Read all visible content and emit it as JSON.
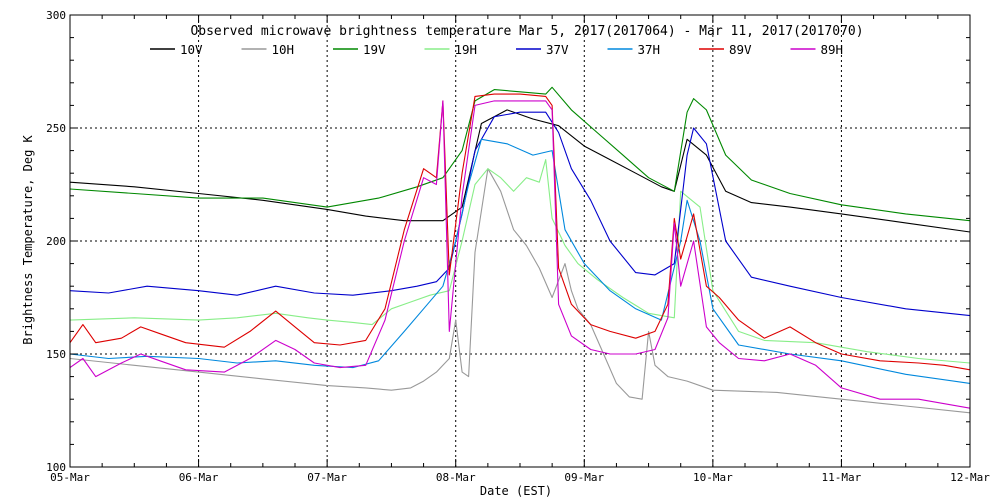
{
  "chart_data": {
    "type": "line",
    "title": "Observed microwave brightness temperature Mar  5, 2017(2017064) - Mar 11, 2017(2017070)",
    "xlabel": "Date (EST)",
    "ylabel": "Brightness Temperature, Deg K",
    "xlim": [
      0,
      7
    ],
    "ylim": [
      100,
      300
    ],
    "x_unit": "days since 05-Mar 00:00",
    "grid": true,
    "legend_position": "top",
    "x_ticks": [
      {
        "value": 0,
        "label": "05-Mar"
      },
      {
        "value": 1,
        "label": "06-Mar"
      },
      {
        "value": 2,
        "label": "07-Mar"
      },
      {
        "value": 3,
        "label": "08-Mar"
      },
      {
        "value": 4,
        "label": "09-Mar"
      },
      {
        "value": 5,
        "label": "10-Mar"
      },
      {
        "value": 6,
        "label": "11-Mar"
      },
      {
        "value": 7,
        "label": "12-Mar"
      }
    ],
    "y_ticks": [
      {
        "value": 100,
        "label": "100"
      },
      {
        "value": 150,
        "label": "150"
      },
      {
        "value": 200,
        "label": "200"
      },
      {
        "value": 250,
        "label": "250"
      },
      {
        "value": 300,
        "label": "300"
      }
    ],
    "series": [
      {
        "name": "10V",
        "color": "#000000",
        "points": [
          [
            0,
            226
          ],
          [
            0.5,
            224
          ],
          [
            1,
            221
          ],
          [
            1.5,
            218
          ],
          [
            2,
            214
          ],
          [
            2.3,
            211
          ],
          [
            2.6,
            209
          ],
          [
            2.9,
            209
          ],
          [
            3.05,
            215
          ],
          [
            3.2,
            252
          ],
          [
            3.4,
            258
          ],
          [
            3.6,
            254
          ],
          [
            3.8,
            251
          ],
          [
            4.0,
            242
          ],
          [
            4.2,
            236
          ],
          [
            4.4,
            230
          ],
          [
            4.6,
            224
          ],
          [
            4.7,
            222
          ],
          [
            4.8,
            245
          ],
          [
            4.95,
            238
          ],
          [
            5.1,
            222
          ],
          [
            5.3,
            217
          ],
          [
            5.6,
            215
          ],
          [
            6.0,
            212
          ],
          [
            6.5,
            208
          ],
          [
            7,
            204
          ]
        ]
      },
      {
        "name": "10H",
        "color": "#999999",
        "points": [
          [
            0,
            148
          ],
          [
            0.5,
            145
          ],
          [
            1,
            142
          ],
          [
            1.5,
            139
          ],
          [
            2,
            136
          ],
          [
            2.3,
            135
          ],
          [
            2.5,
            134
          ],
          [
            2.65,
            135
          ],
          [
            2.75,
            138
          ],
          [
            2.85,
            142
          ],
          [
            2.95,
            148
          ],
          [
            3.0,
            165
          ],
          [
            3.05,
            142
          ],
          [
            3.1,
            140
          ],
          [
            3.15,
            195
          ],
          [
            3.25,
            232
          ],
          [
            3.35,
            222
          ],
          [
            3.45,
            205
          ],
          [
            3.55,
            198
          ],
          [
            3.65,
            188
          ],
          [
            3.75,
            175
          ],
          [
            3.85,
            190
          ],
          [
            3.9,
            178
          ],
          [
            3.95,
            170
          ],
          [
            4.05,
            163
          ],
          [
            4.15,
            150
          ],
          [
            4.25,
            137
          ],
          [
            4.35,
            131
          ],
          [
            4.45,
            130
          ],
          [
            4.5,
            160
          ],
          [
            4.55,
            145
          ],
          [
            4.65,
            140
          ],
          [
            4.8,
            138
          ],
          [
            5.0,
            134
          ],
          [
            5.5,
            133
          ],
          [
            6.0,
            130
          ],
          [
            6.5,
            127
          ],
          [
            7,
            124
          ]
        ]
      },
      {
        "name": "19V",
        "color": "#008800",
        "points": [
          [
            0,
            223
          ],
          [
            0.5,
            221
          ],
          [
            1,
            219
          ],
          [
            1.5,
            219
          ],
          [
            2,
            215
          ],
          [
            2.4,
            219
          ],
          [
            2.7,
            224
          ],
          [
            2.9,
            228
          ],
          [
            3.05,
            240
          ],
          [
            3.15,
            262
          ],
          [
            3.3,
            267
          ],
          [
            3.5,
            266
          ],
          [
            3.7,
            265
          ],
          [
            3.75,
            268
          ],
          [
            3.9,
            258
          ],
          [
            4.1,
            248
          ],
          [
            4.3,
            238
          ],
          [
            4.5,
            228
          ],
          [
            4.7,
            222
          ],
          [
            4.8,
            257
          ],
          [
            4.85,
            263
          ],
          [
            4.95,
            258
          ],
          [
            5.1,
            238
          ],
          [
            5.3,
            227
          ],
          [
            5.6,
            221
          ],
          [
            6.0,
            216
          ],
          [
            6.5,
            212
          ],
          [
            7,
            209
          ]
        ]
      },
      {
        "name": "19H",
        "color": "#88ee88",
        "points": [
          [
            0,
            165
          ],
          [
            0.5,
            166
          ],
          [
            1,
            165
          ],
          [
            1.3,
            166
          ],
          [
            1.6,
            168
          ],
          [
            1.85,
            166
          ],
          [
            2.0,
            165
          ],
          [
            2.2,
            164
          ],
          [
            2.35,
            163
          ],
          [
            2.5,
            170
          ],
          [
            2.65,
            173
          ],
          [
            2.8,
            176
          ],
          [
            2.95,
            178
          ],
          [
            3.05,
            200
          ],
          [
            3.15,
            225
          ],
          [
            3.25,
            232
          ],
          [
            3.35,
            228
          ],
          [
            3.45,
            222
          ],
          [
            3.55,
            228
          ],
          [
            3.65,
            226
          ],
          [
            3.7,
            236
          ],
          [
            3.75,
            210
          ],
          [
            3.85,
            198
          ],
          [
            3.95,
            190
          ],
          [
            4.1,
            183
          ],
          [
            4.3,
            175
          ],
          [
            4.5,
            168
          ],
          [
            4.7,
            166
          ],
          [
            4.75,
            222
          ],
          [
            4.9,
            215
          ],
          [
            5.0,
            178
          ],
          [
            5.2,
            160
          ],
          [
            5.4,
            156
          ],
          [
            5.8,
            155
          ],
          [
            6.2,
            151
          ],
          [
            6.6,
            148
          ],
          [
            7,
            146
          ]
        ]
      },
      {
        "name": "37V",
        "color": "#0000cc",
        "points": [
          [
            0,
            178
          ],
          [
            0.3,
            177
          ],
          [
            0.6,
            180
          ],
          [
            1,
            178
          ],
          [
            1.3,
            176
          ],
          [
            1.6,
            180
          ],
          [
            1.9,
            177
          ],
          [
            2.2,
            176
          ],
          [
            2.5,
            178
          ],
          [
            2.7,
            180
          ],
          [
            2.85,
            182
          ],
          [
            2.95,
            188
          ],
          [
            3.05,
            212
          ],
          [
            3.15,
            240
          ],
          [
            3.3,
            255
          ],
          [
            3.5,
            257
          ],
          [
            3.7,
            257
          ],
          [
            3.8,
            248
          ],
          [
            3.9,
            232
          ],
          [
            4.05,
            218
          ],
          [
            4.2,
            200
          ],
          [
            4.4,
            186
          ],
          [
            4.55,
            185
          ],
          [
            4.7,
            190
          ],
          [
            4.8,
            238
          ],
          [
            4.85,
            250
          ],
          [
            4.95,
            243
          ],
          [
            5.1,
            200
          ],
          [
            5.3,
            184
          ],
          [
            5.6,
            180
          ],
          [
            6.0,
            175
          ],
          [
            6.5,
            170
          ],
          [
            7,
            167
          ]
        ]
      },
      {
        "name": "37H",
        "color": "#0088dd",
        "points": [
          [
            0,
            150
          ],
          [
            0.3,
            148
          ],
          [
            0.6,
            149
          ],
          [
            1,
            148
          ],
          [
            1.3,
            146
          ],
          [
            1.6,
            147
          ],
          [
            1.9,
            145
          ],
          [
            2.2,
            144
          ],
          [
            2.4,
            147
          ],
          [
            2.6,
            160
          ],
          [
            2.75,
            170
          ],
          [
            2.9,
            180
          ],
          [
            3.0,
            200
          ],
          [
            3.1,
            225
          ],
          [
            3.2,
            245
          ],
          [
            3.4,
            243
          ],
          [
            3.6,
            238
          ],
          [
            3.75,
            240
          ],
          [
            3.85,
            205
          ],
          [
            4.0,
            190
          ],
          [
            4.2,
            178
          ],
          [
            4.4,
            170
          ],
          [
            4.6,
            165
          ],
          [
            4.75,
            200
          ],
          [
            4.8,
            218
          ],
          [
            4.9,
            200
          ],
          [
            5.0,
            170
          ],
          [
            5.2,
            154
          ],
          [
            5.6,
            150
          ],
          [
            6.0,
            147
          ],
          [
            6.5,
            141
          ],
          [
            7,
            137
          ]
        ]
      },
      {
        "name": "89V",
        "color": "#dd0000",
        "points": [
          [
            0,
            155
          ],
          [
            0.1,
            163
          ],
          [
            0.2,
            155
          ],
          [
            0.4,
            157
          ],
          [
            0.55,
            162
          ],
          [
            0.7,
            159
          ],
          [
            0.9,
            155
          ],
          [
            1.2,
            153
          ],
          [
            1.4,
            160
          ],
          [
            1.6,
            169
          ],
          [
            1.75,
            162
          ],
          [
            1.9,
            155
          ],
          [
            2.1,
            154
          ],
          [
            2.3,
            156
          ],
          [
            2.45,
            170
          ],
          [
            2.6,
            205
          ],
          [
            2.75,
            232
          ],
          [
            2.85,
            228
          ],
          [
            2.9,
            262
          ],
          [
            2.95,
            185
          ],
          [
            3.05,
            230
          ],
          [
            3.15,
            264
          ],
          [
            3.3,
            265
          ],
          [
            3.5,
            265
          ],
          [
            3.7,
            264
          ],
          [
            3.75,
            260
          ],
          [
            3.8,
            188
          ],
          [
            3.9,
            172
          ],
          [
            4.05,
            163
          ],
          [
            4.2,
            160
          ],
          [
            4.4,
            157
          ],
          [
            4.55,
            160
          ],
          [
            4.65,
            172
          ],
          [
            4.7,
            210
          ],
          [
            4.75,
            192
          ],
          [
            4.85,
            212
          ],
          [
            4.95,
            180
          ],
          [
            5.05,
            175
          ],
          [
            5.2,
            165
          ],
          [
            5.4,
            157
          ],
          [
            5.6,
            162
          ],
          [
            5.8,
            155
          ],
          [
            6.0,
            150
          ],
          [
            6.3,
            147
          ],
          [
            6.6,
            146
          ],
          [
            6.8,
            145
          ],
          [
            7,
            143
          ]
        ]
      },
      {
        "name": "89H",
        "color": "#cc00cc",
        "points": [
          [
            0,
            144
          ],
          [
            0.1,
            148
          ],
          [
            0.2,
            140
          ],
          [
            0.4,
            146
          ],
          [
            0.55,
            150
          ],
          [
            0.7,
            147
          ],
          [
            0.9,
            143
          ],
          [
            1.2,
            142
          ],
          [
            1.4,
            148
          ],
          [
            1.6,
            156
          ],
          [
            1.75,
            152
          ],
          [
            1.9,
            146
          ],
          [
            2.1,
            144
          ],
          [
            2.3,
            145
          ],
          [
            2.45,
            165
          ],
          [
            2.6,
            200
          ],
          [
            2.75,
            228
          ],
          [
            2.85,
            225
          ],
          [
            2.9,
            262
          ],
          [
            2.95,
            160
          ],
          [
            3.05,
            220
          ],
          [
            3.15,
            260
          ],
          [
            3.3,
            262
          ],
          [
            3.5,
            262
          ],
          [
            3.7,
            262
          ],
          [
            3.75,
            258
          ],
          [
            3.8,
            172
          ],
          [
            3.9,
            158
          ],
          [
            4.05,
            152
          ],
          [
            4.2,
            150
          ],
          [
            4.4,
            150
          ],
          [
            4.55,
            152
          ],
          [
            4.65,
            166
          ],
          [
            4.7,
            208
          ],
          [
            4.75,
            180
          ],
          [
            4.85,
            200
          ],
          [
            4.95,
            162
          ],
          [
            5.05,
            155
          ],
          [
            5.2,
            148
          ],
          [
            5.4,
            147
          ],
          [
            5.6,
            150
          ],
          [
            5.8,
            145
          ],
          [
            6.0,
            135
          ],
          [
            6.3,
            130
          ],
          [
            6.6,
            130
          ],
          [
            6.8,
            128
          ],
          [
            7,
            126
          ]
        ]
      }
    ]
  }
}
